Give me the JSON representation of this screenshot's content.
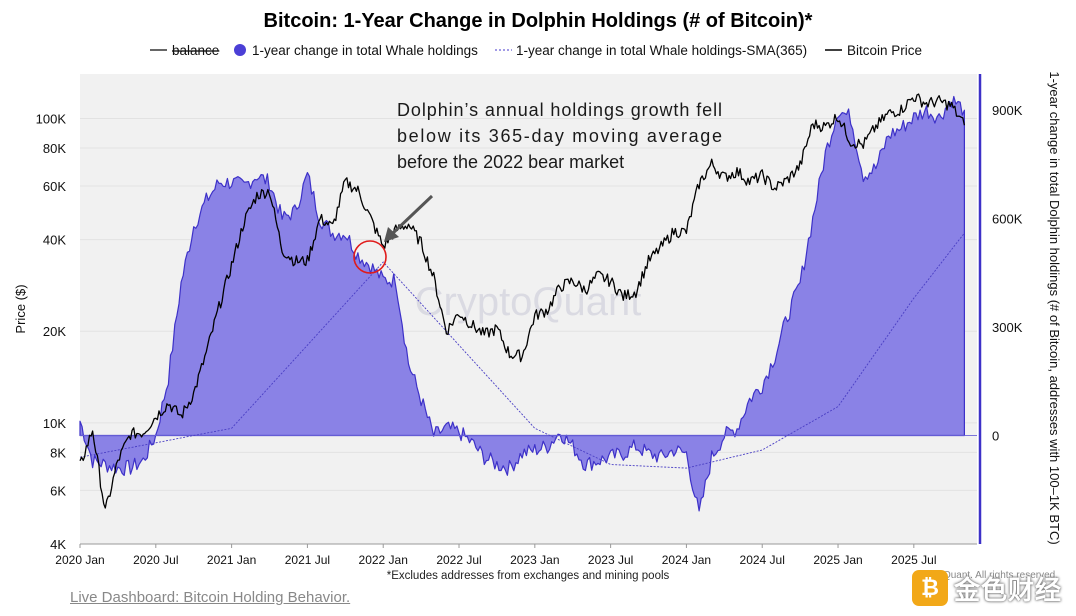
{
  "title": "Bitcoin: 1-Year Change in Dolphin Holdings (# of Bitcoin)*",
  "legend": [
    {
      "label": "balance",
      "style": "strike",
      "color": "#333333"
    },
    {
      "label": "1-year change in total Whale holdings",
      "style": "dot",
      "color": "#4b3fd6"
    },
    {
      "label": "1-year change in total Whale holdings-SMA(365)",
      "style": "dotted-line",
      "color": "#6a5fd8"
    },
    {
      "label": "Bitcoin Price",
      "style": "line",
      "color": "#000000"
    }
  ],
  "annotation": {
    "lines": [
      "Dolphin’s annual holdings growth fell",
      "below its 365-day moving average",
      "before the 2022 bear market"
    ]
  },
  "watermark": "CryptoQuant",
  "footnote": "*Excludes addresses from exchanges and mining pools",
  "link_text": "Live Dashboard: Bitcoin Holding Behavior.",
  "badge_text": "金色财经",
  "credit_text": "CryptoQuant. All rights reserved.",
  "colors": {
    "fill": "#8a82e6",
    "fill_edge": "#3d31c8",
    "sma": "#4a3fc4",
    "price": "#000000",
    "plot_bg": "#f1f1f1"
  },
  "chart_data": {
    "type": "area",
    "left_axis": {
      "label": "Price ($)",
      "scale": "log",
      "range": [
        4000,
        140000
      ],
      "ticks": [
        4000,
        6000,
        8000,
        10000,
        20000,
        40000,
        60000,
        80000,
        100000
      ],
      "tick_labels": [
        "4K",
        "6K",
        "8K",
        "10K",
        "20K",
        "40K",
        "60K",
        "80K",
        "100K"
      ]
    },
    "right_axis": {
      "label": "1-year change in total Dolphin holdings (# of Bitcoin, addresses with 100–1K BTC)",
      "range": [
        -300000,
        1000000
      ],
      "ticks": [
        0,
        300000,
        600000,
        900000
      ],
      "tick_labels": [
        "0",
        "300K",
        "600K",
        "900K"
      ]
    },
    "x_ticks": [
      "2020 Jan",
      "2020 Jul",
      "2021 Jan",
      "2021 Jul",
      "2022 Jan",
      "2022 Jul",
      "2023 Jan",
      "2023 Jul",
      "2024 Jan",
      "2024 Jul",
      "2025 Jan",
      "2025 Jul"
    ],
    "x_range": [
      "2020-01",
      "2025-12"
    ],
    "series": [
      {
        "name": "Bitcoin Price",
        "axis": "left",
        "x": [
          "2020-01",
          "2020-02",
          "2020-03",
          "2020-04",
          "2020-05",
          "2020-06",
          "2020-07",
          "2020-08",
          "2020-09",
          "2020-10",
          "2020-11",
          "2020-12",
          "2021-01",
          "2021-02",
          "2021-03",
          "2021-04",
          "2021-05",
          "2021-06",
          "2021-07",
          "2021-08",
          "2021-09",
          "2021-10",
          "2021-11",
          "2021-12",
          "2022-01",
          "2022-02",
          "2022-03",
          "2022-04",
          "2022-05",
          "2022-06",
          "2022-07",
          "2022-08",
          "2022-09",
          "2022-10",
          "2022-11",
          "2022-12",
          "2023-01",
          "2023-02",
          "2023-03",
          "2023-04",
          "2023-05",
          "2023-06",
          "2023-07",
          "2023-08",
          "2023-09",
          "2023-10",
          "2023-11",
          "2023-12",
          "2024-01",
          "2024-02",
          "2024-03",
          "2024-04",
          "2024-05",
          "2024-06",
          "2024-07",
          "2024-08",
          "2024-09",
          "2024-10",
          "2024-11",
          "2024-12",
          "2025-01",
          "2025-02",
          "2025-03",
          "2025-04",
          "2025-05",
          "2025-06",
          "2025-07",
          "2025-08",
          "2025-09",
          "2025-10",
          "2025-11"
        ],
        "y": [
          7200,
          9500,
          5100,
          7500,
          9200,
          9300,
          10500,
          11600,
          10500,
          12500,
          17000,
          24000,
          33000,
          46000,
          56000,
          58000,
          37000,
          34000,
          34000,
          47000,
          44000,
          62000,
          58000,
          47000,
          38000,
          43000,
          45000,
          39000,
          30000,
          20000,
          23000,
          21000,
          19500,
          20400,
          16800,
          16600,
          22500,
          23500,
          28000,
          29300,
          27300,
          30500,
          29200,
          26000,
          27000,
          34000,
          37800,
          42500,
          42500,
          61000,
          71000,
          64000,
          67000,
          62000,
          65000,
          59000,
          63000,
          70000,
          96000,
          94000,
          102000,
          84000,
          82000,
          94000,
          104000,
          107000,
          118000,
          112000,
          114000,
          110000,
          95000
        ]
      },
      {
        "name": "1-year change in total Whale holdings",
        "axis": "right",
        "x": [
          "2020-01",
          "2020-02",
          "2020-03",
          "2020-04",
          "2020-05",
          "2020-06",
          "2020-07",
          "2020-08",
          "2020-09",
          "2020-10",
          "2020-11",
          "2020-12",
          "2021-01",
          "2021-02",
          "2021-03",
          "2021-04",
          "2021-05",
          "2021-06",
          "2021-07",
          "2021-08",
          "2021-09",
          "2021-10",
          "2021-11",
          "2021-12",
          "2022-01",
          "2022-02",
          "2022-03",
          "2022-04",
          "2022-05",
          "2022-06",
          "2022-07",
          "2022-08",
          "2022-09",
          "2022-10",
          "2022-11",
          "2022-12",
          "2023-01",
          "2023-02",
          "2023-03",
          "2023-04",
          "2023-05",
          "2023-06",
          "2023-07",
          "2023-08",
          "2023-09",
          "2023-10",
          "2023-11",
          "2023-12",
          "2024-01",
          "2024-02",
          "2024-03",
          "2024-04",
          "2024-05",
          "2024-06",
          "2024-07",
          "2024-08",
          "2024-09",
          "2024-10",
          "2024-11",
          "2024-12",
          "2025-01",
          "2025-02",
          "2025-03",
          "2025-04",
          "2025-05",
          "2025-06",
          "2025-07",
          "2025-08",
          "2025-09",
          "2025-10",
          "2025-11"
        ],
        "y": [
          40000,
          -70000,
          -80000,
          -90000,
          -90000,
          -70000,
          0,
          160000,
          420000,
          580000,
          650000,
          700000,
          700000,
          690000,
          720000,
          700000,
          600000,
          620000,
          720000,
          600000,
          560000,
          560000,
          500000,
          470000,
          430000,
          430000,
          200000,
          100000,
          0,
          20000,
          10000,
          -20000,
          -60000,
          -80000,
          -90000,
          -50000,
          -40000,
          -30000,
          10000,
          -30000,
          -80000,
          -70000,
          -60000,
          -50000,
          -30000,
          -50000,
          -60000,
          -40000,
          -50000,
          -220000,
          -60000,
          0,
          20000,
          100000,
          140000,
          220000,
          330000,
          420000,
          600000,
          780000,
          900000,
          880000,
          720000,
          740000,
          830000,
          850000,
          880000,
          900000,
          880000,
          930000,
          900000
        ]
      },
      {
        "name": "1-year change in total Whale holdings-SMA(365)",
        "axis": "right",
        "x": [
          "2020-01",
          "2020-07",
          "2021-01",
          "2021-07",
          "2022-01",
          "2022-07",
          "2023-01",
          "2023-07",
          "2024-01",
          "2024-07",
          "2025-01",
          "2025-07",
          "2025-11"
        ],
        "y": [
          -60000,
          -20000,
          20000,
          250000,
          480000,
          250000,
          20000,
          -80000,
          -90000,
          -40000,
          80000,
          380000,
          560000
        ]
      }
    ],
    "annotations": [
      "Dolphin’s annual holdings growth fell below its 365-day moving average before the 2022 bear market"
    ],
    "grid": "horizontal",
    "legend_position": "top"
  }
}
